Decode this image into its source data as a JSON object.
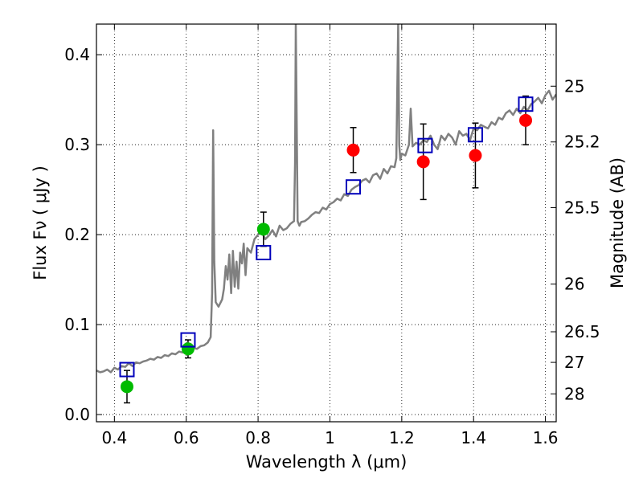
{
  "chart_data": {
    "type": "scatter",
    "title": "",
    "xlabel": "Wavelength  λ (μm)",
    "ylabel": "Flux  Fν  ( μJy )",
    "y2label": "Magnitude (AB)",
    "xlim": [
      0.35,
      1.63
    ],
    "ylim": [
      -0.008,
      0.434
    ],
    "grid": true,
    "grid_style": "dotted",
    "xticks": [
      0.4,
      0.6,
      0.8,
      1.0,
      1.2,
      1.4,
      1.6
    ],
    "xtick_labels": [
      "0.4",
      "0.6",
      "0.8",
      "1",
      "1.2",
      "1.4",
      "1.6"
    ],
    "yticks": [
      0.0,
      0.1,
      0.2,
      0.3,
      0.4
    ],
    "ytick_labels": [
      "0.0",
      "0.1",
      "0.2",
      "0.3",
      "0.4"
    ],
    "y2ticks": [
      {
        "label": "25",
        "flux": 0.365
      },
      {
        "label": "25.2",
        "flux": 0.303
      },
      {
        "label": "25.5",
        "flux": 0.23
      },
      {
        "label": "26",
        "flux": 0.145
      },
      {
        "label": "26.5",
        "flux": 0.092
      },
      {
        "label": "27",
        "flux": 0.058
      },
      {
        "label": "28",
        "flux": 0.023
      }
    ],
    "series": [
      {
        "kind": "line",
        "color": "#808080",
        "x": [
          0.35,
          0.36,
          0.37,
          0.38,
          0.39,
          0.4,
          0.41,
          0.42,
          0.43,
          0.44,
          0.45,
          0.46,
          0.47,
          0.48,
          0.49,
          0.5,
          0.51,
          0.52,
          0.53,
          0.54,
          0.55,
          0.56,
          0.57,
          0.58,
          0.59,
          0.6,
          0.61,
          0.62,
          0.63,
          0.64,
          0.65,
          0.66,
          0.668,
          0.672,
          0.675,
          0.678,
          0.682,
          0.69,
          0.7,
          0.705,
          0.71,
          0.715,
          0.72,
          0.725,
          0.73,
          0.735,
          0.74,
          0.745,
          0.75,
          0.755,
          0.76,
          0.765,
          0.77,
          0.78,
          0.79,
          0.8,
          0.81,
          0.82,
          0.83,
          0.84,
          0.85,
          0.86,
          0.87,
          0.88,
          0.89,
          0.9,
          0.903,
          0.905,
          0.907,
          0.91,
          0.915,
          0.92,
          0.93,
          0.94,
          0.95,
          0.96,
          0.97,
          0.98,
          0.99,
          1.0,
          1.01,
          1.02,
          1.03,
          1.04,
          1.05,
          1.06,
          1.07,
          1.08,
          1.09,
          1.1,
          1.11,
          1.12,
          1.13,
          1.14,
          1.15,
          1.16,
          1.17,
          1.18,
          1.185,
          1.19,
          1.193,
          1.196,
          1.2,
          1.21,
          1.22,
          1.225,
          1.23,
          1.24,
          1.25,
          1.26,
          1.27,
          1.28,
          1.29,
          1.3,
          1.31,
          1.32,
          1.33,
          1.34,
          1.35,
          1.36,
          1.37,
          1.38,
          1.39,
          1.4,
          1.41,
          1.42,
          1.43,
          1.44,
          1.45,
          1.46,
          1.47,
          1.48,
          1.49,
          1.5,
          1.51,
          1.52,
          1.53,
          1.54,
          1.55,
          1.56,
          1.57,
          1.58,
          1.59,
          1.6,
          1.61,
          1.62,
          1.63
        ],
        "y": [
          0.049,
          0.047,
          0.048,
          0.05,
          0.047,
          0.052,
          0.05,
          0.054,
          0.053,
          0.057,
          0.054,
          0.058,
          0.057,
          0.059,
          0.06,
          0.062,
          0.061,
          0.064,
          0.063,
          0.066,
          0.065,
          0.068,
          0.067,
          0.07,
          0.069,
          0.072,
          0.073,
          0.074,
          0.073,
          0.076,
          0.077,
          0.08,
          0.086,
          0.135,
          0.316,
          0.17,
          0.125,
          0.12,
          0.128,
          0.14,
          0.165,
          0.15,
          0.178,
          0.135,
          0.182,
          0.142,
          0.17,
          0.14,
          0.18,
          0.168,
          0.19,
          0.155,
          0.185,
          0.18,
          0.195,
          0.2,
          0.203,
          0.195,
          0.199,
          0.205,
          0.198,
          0.21,
          0.205,
          0.207,
          0.212,
          0.215,
          0.28,
          0.434,
          0.35,
          0.215,
          0.21,
          0.214,
          0.215,
          0.218,
          0.222,
          0.225,
          0.224,
          0.23,
          0.228,
          0.234,
          0.236,
          0.24,
          0.238,
          0.245,
          0.243,
          0.25,
          0.253,
          0.255,
          0.26,
          0.262,
          0.258,
          0.266,
          0.268,
          0.262,
          0.273,
          0.268,
          0.276,
          0.275,
          0.285,
          0.434,
          0.3,
          0.283,
          0.29,
          0.288,
          0.3,
          0.34,
          0.298,
          0.302,
          0.3,
          0.305,
          0.303,
          0.31,
          0.3,
          0.295,
          0.31,
          0.305,
          0.312,
          0.308,
          0.3,
          0.315,
          0.31,
          0.312,
          0.305,
          0.318,
          0.316,
          0.322,
          0.32,
          0.318,
          0.325,
          0.322,
          0.33,
          0.328,
          0.335,
          0.338,
          0.333,
          0.34,
          0.335,
          0.342,
          0.338,
          0.345,
          0.348,
          0.352,
          0.346,
          0.355,
          0.36,
          0.35,
          0.356
        ]
      },
      {
        "kind": "points",
        "marker": "circle",
        "color": "#00bb00",
        "x": [
          0.435,
          0.605,
          0.815
        ],
        "y": [
          0.031,
          0.073,
          0.206
        ],
        "yerr": [
          0.018,
          0.01,
          0.019
        ]
      },
      {
        "kind": "points",
        "marker": "circle",
        "color": "#ff0000",
        "x": [
          1.065,
          1.26,
          1.405,
          1.545
        ],
        "y": [
          0.294,
          0.281,
          0.288,
          0.327
        ],
        "yerr": [
          0.025,
          0.042,
          0.036,
          0.027
        ]
      },
      {
        "kind": "points",
        "marker": "square-open",
        "color": "#0000bb",
        "x": [
          0.435,
          0.605,
          0.815,
          1.065,
          1.265,
          1.405,
          1.545
        ],
        "y": [
          0.05,
          0.083,
          0.18,
          0.253,
          0.299,
          0.311,
          0.345
        ]
      }
    ]
  }
}
